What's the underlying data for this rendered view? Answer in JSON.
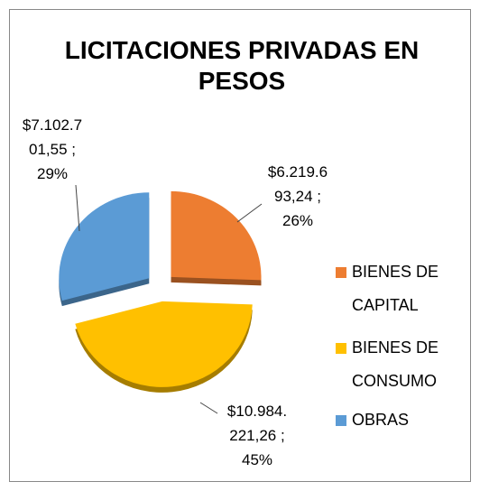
{
  "chart_data": {
    "type": "pie",
    "title": "LICITACIONES PRIVADAS EN PESOS",
    "categories": [
      "BIENES DE CAPITAL",
      "BIENES DE CONSUMO",
      "OBRAS"
    ],
    "values": [
      6219693.24,
      10984221.26,
      7102701.55
    ],
    "value_labels": [
      "$6.219.693,24 ; 26%",
      "$10.984.221,26 ; 45%",
      "$7.102.701,55 ; 29%"
    ],
    "colors": [
      "#ED7D31",
      "#FFC000",
      "#5B9BD5"
    ],
    "legend": "right"
  }
}
